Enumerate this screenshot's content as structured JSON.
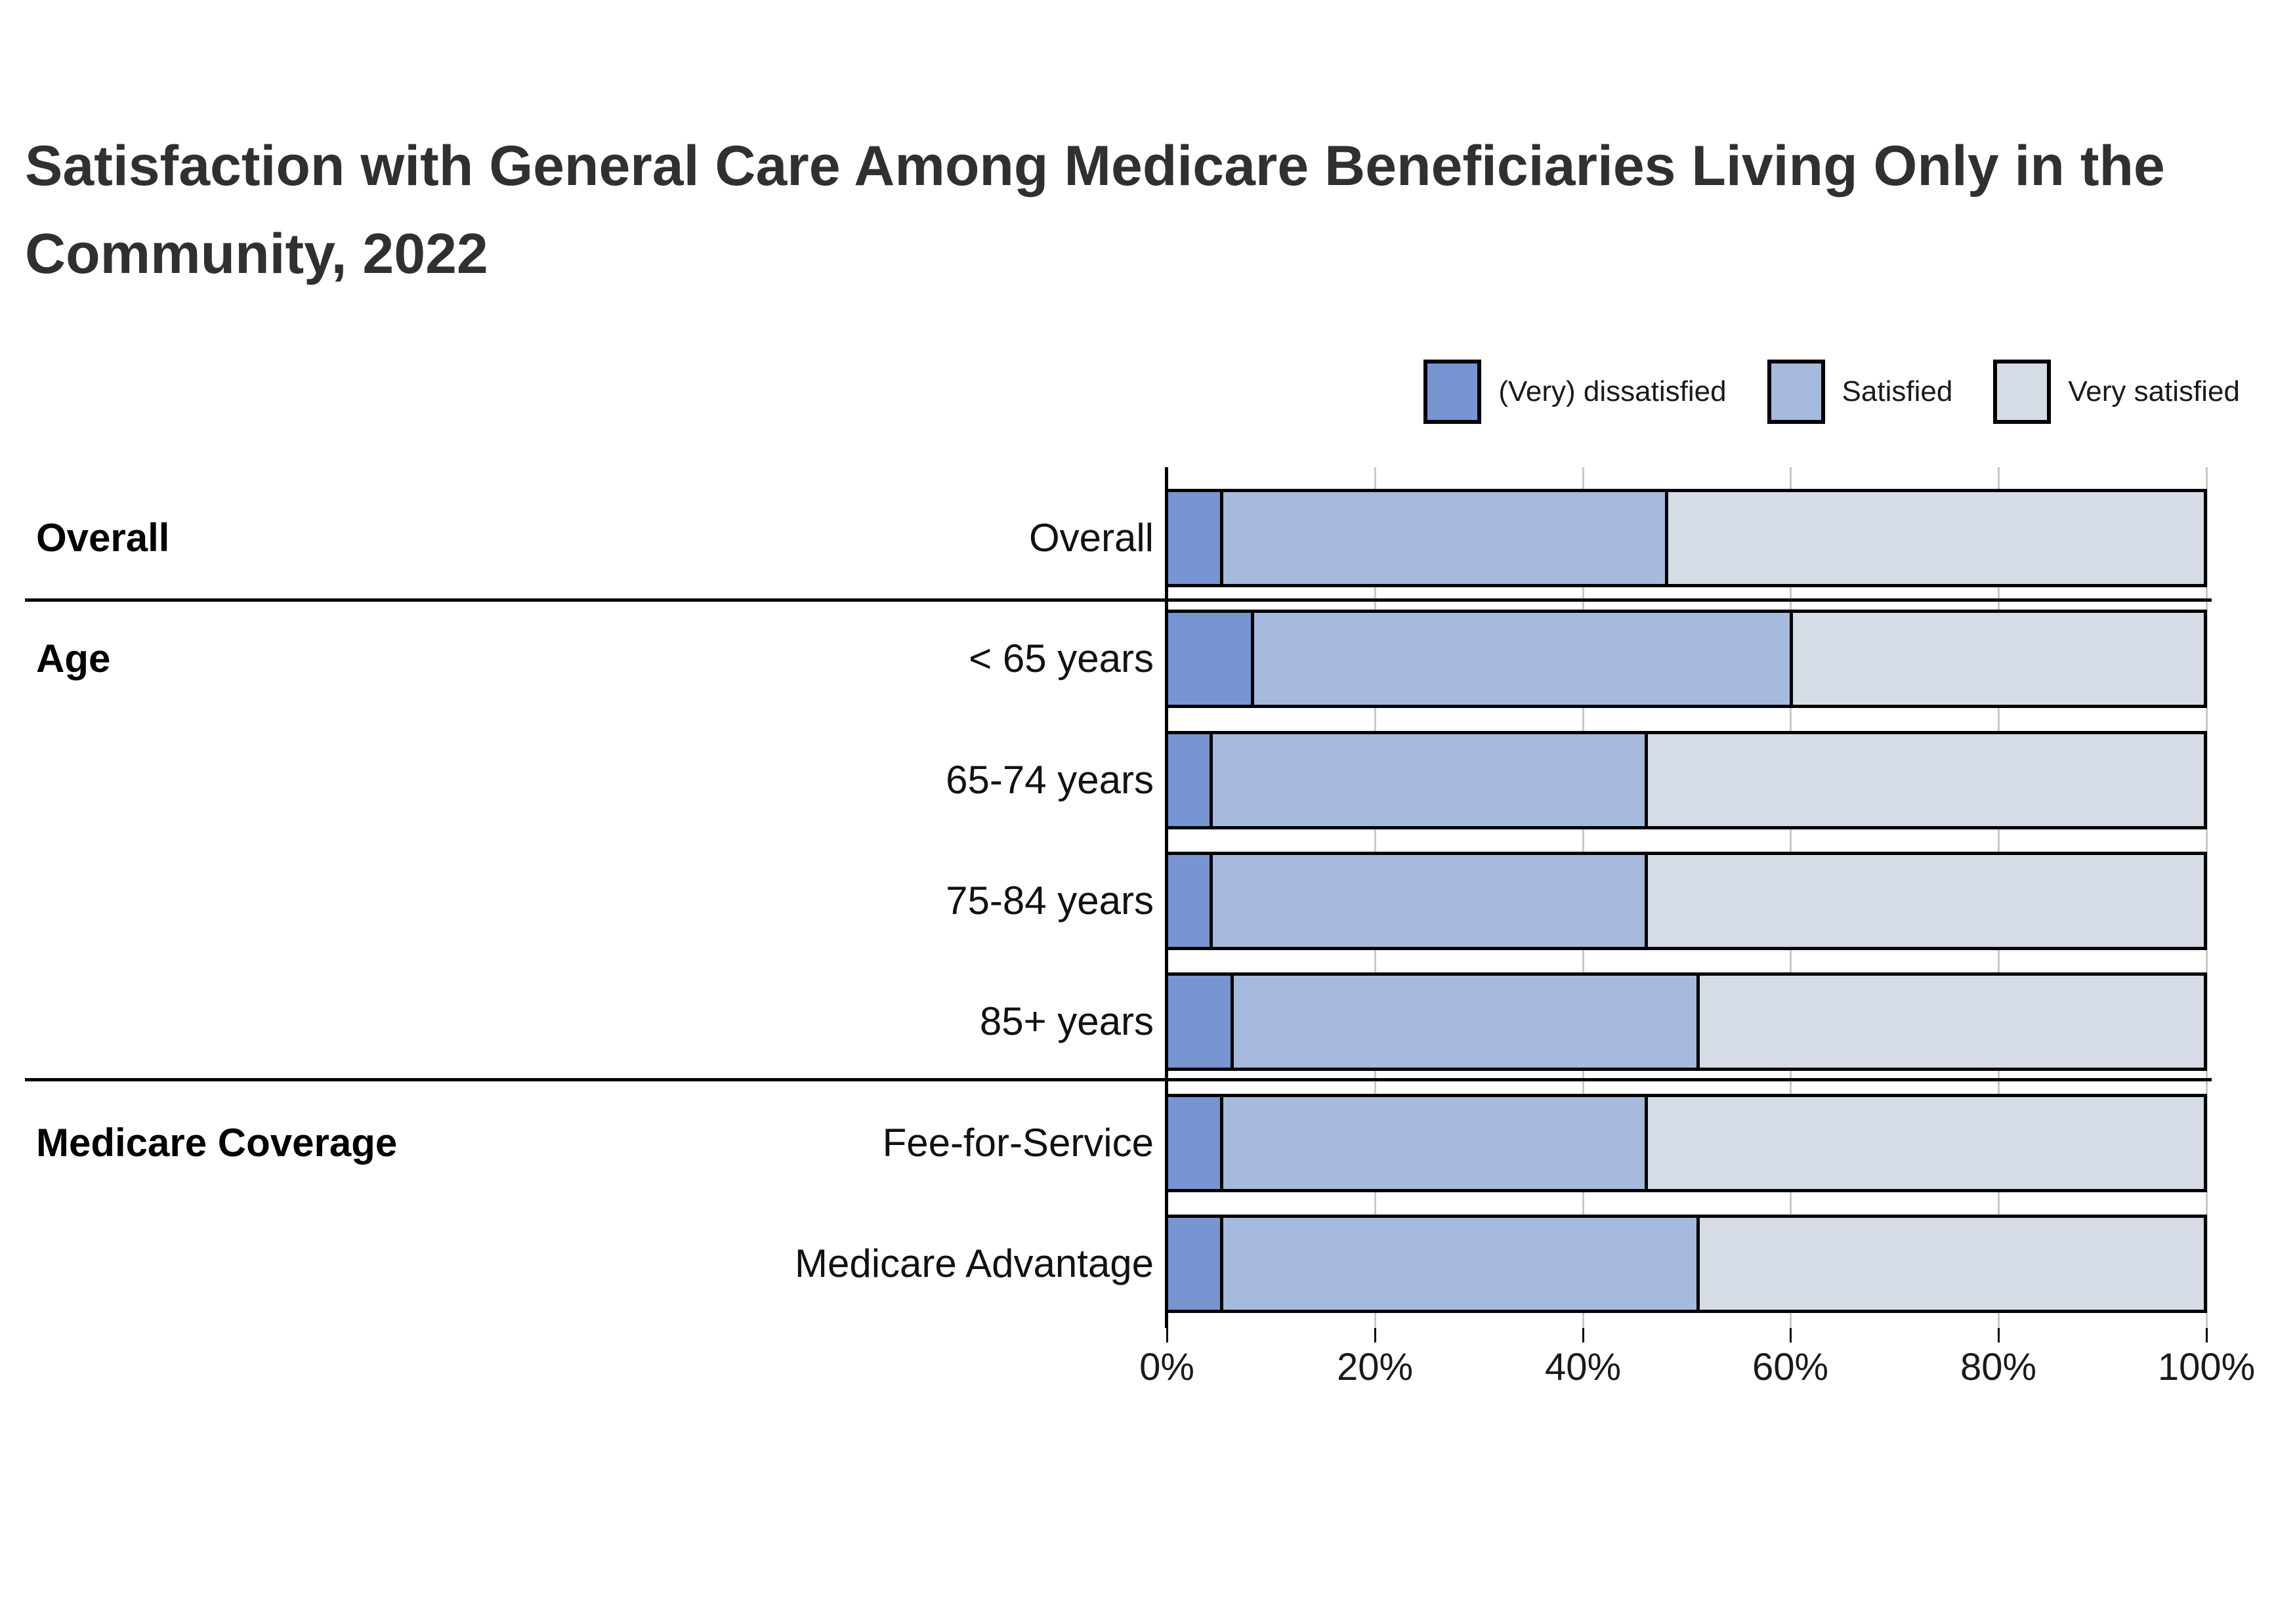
{
  "title": {
    "lines": [
      "Satisfaction with General Care Among Medicare Beneficiaries Living Only in the",
      "Community, 2022"
    ]
  },
  "legend": {
    "items": [
      {
        "label": "(Very) dissatisfied",
        "color": "#7795D3"
      },
      {
        "label": "Satisfied",
        "color": "#A6BADD"
      },
      {
        "label": "Very satisfied",
        "color": "#D5DCE6"
      }
    ]
  },
  "chart_data": {
    "type": "bar",
    "orientation": "horizontal",
    "stacked": true,
    "units": "%",
    "title": "Satisfaction with General Care Among Medicare Beneficiaries Living Only in the Community, 2022",
    "categories": [
      "Overall",
      "< 65 years",
      "65-74 years",
      "75-84 years",
      "85+ years",
      "Fee-for-Service",
      "Medicare Advantage"
    ],
    "sections": [
      {
        "label": "Overall",
        "first_row": 0
      },
      {
        "label": "Age",
        "first_row": 1
      },
      {
        "label": "Medicare Coverage",
        "first_row": 5
      }
    ],
    "series": [
      {
        "name": "(Very) dissatisfied",
        "color": "#7795D3",
        "values": [
          5,
          8,
          4,
          4,
          6,
          5,
          5
        ]
      },
      {
        "name": "Satisfied",
        "color": "#A6BADD",
        "values": [
          43,
          52,
          42,
          42,
          45,
          41,
          46
        ]
      },
      {
        "name": "Very satisfied",
        "color": "#D5DCE6",
        "values": [
          52,
          40,
          54,
          54,
          49,
          54,
          49
        ]
      }
    ],
    "x_axis": {
      "min": 0,
      "max": 100,
      "tick_labels": [
        "0%",
        "20%",
        "40%",
        "60%",
        "80%",
        "100%"
      ]
    },
    "grid": true,
    "legend_position": "top-right",
    "colors": {
      "grid": "#c9c9c9",
      "axis": "#000000",
      "bar_border": "#000000",
      "title_text": "#303030"
    }
  }
}
